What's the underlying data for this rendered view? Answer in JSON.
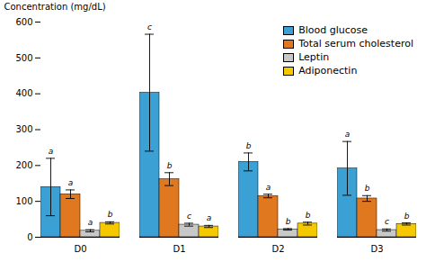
{
  "chart_data": {
    "type": "bar",
    "categories": [
      "D0",
      "D1",
      "D2",
      "D3"
    ],
    "series": [
      {
        "name": "Blood glucose",
        "color": "#3BA0D4",
        "values": [
          140,
          403,
          210,
          192
        ],
        "errors": [
          80,
          163,
          25,
          75
        ],
        "sig_labels": [
          "a",
          "c",
          "b",
          "a"
        ]
      },
      {
        "name": "Total serum cholesterol",
        "color": "#E07820",
        "values": [
          120,
          162,
          115,
          108
        ],
        "errors": [
          12,
          18,
          5,
          8
        ],
        "sig_labels": [
          "a",
          "b",
          "a",
          "b"
        ]
      },
      {
        "name": "Leptin",
        "color": "#C8C8C8",
        "values": [
          18,
          35,
          22,
          20
        ],
        "errors": [
          3,
          4,
          2,
          3
        ],
        "sig_labels": [
          "a",
          "c",
          "b",
          "c"
        ]
      },
      {
        "name": "Adiponectin",
        "color": "#F5C800",
        "values": [
          40,
          30,
          38,
          37
        ],
        "errors": [
          3,
          3,
          4,
          3
        ],
        "sig_labels": [
          "b",
          "a",
          "b",
          "b"
        ]
      }
    ],
    "ylabel": "Concentration (mg/dL)",
    "ylim": [
      0,
      600
    ],
    "yticks": [
      0,
      100,
      200,
      300,
      400,
      500,
      600
    ],
    "grid": false,
    "legend": "upper right"
  }
}
